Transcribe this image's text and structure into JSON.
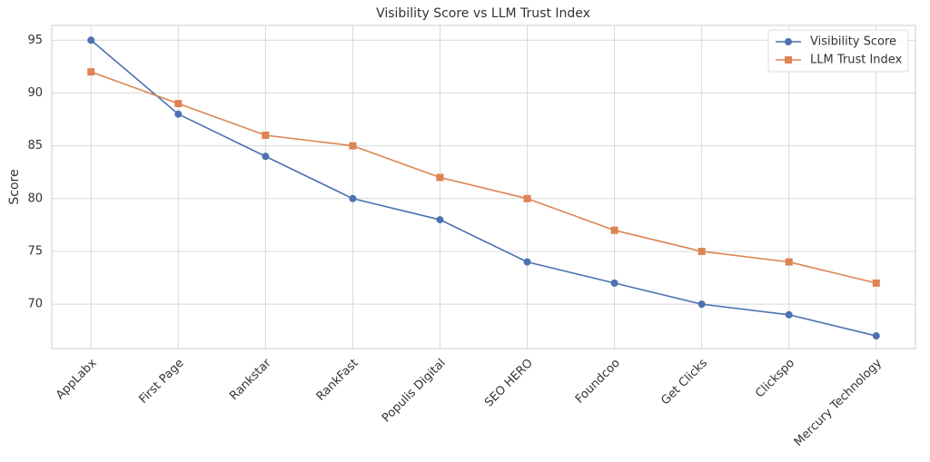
{
  "chart_data": {
    "type": "line",
    "title": "Visibility Score vs LLM Trust Index",
    "y_label": "Score",
    "categories": [
      "AppLabx",
      "First Page",
      "Rankstar",
      "RankFast",
      "Populis Digital",
      "SEO HERO",
      "Foundcoo",
      "Get Clicks",
      "Clickspo",
      "Mercury Technology"
    ],
    "series": [
      {
        "name": "Visibility Score",
        "color": "#4c72b0",
        "marker": "circle",
        "values": [
          95,
          88,
          84,
          80,
          78,
          74,
          72,
          70,
          69,
          67
        ]
      },
      {
        "name": "LLM Trust Index",
        "color": "#dd8452",
        "marker": "square",
        "values": [
          92,
          89,
          86,
          85,
          82,
          80,
          77,
          75,
          74,
          72
        ]
      }
    ],
    "ylim": [
      65.8,
      96.4
    ],
    "yticks": [
      70,
      75,
      80,
      85,
      90,
      95
    ],
    "grid": true,
    "legend": "upper right"
  }
}
